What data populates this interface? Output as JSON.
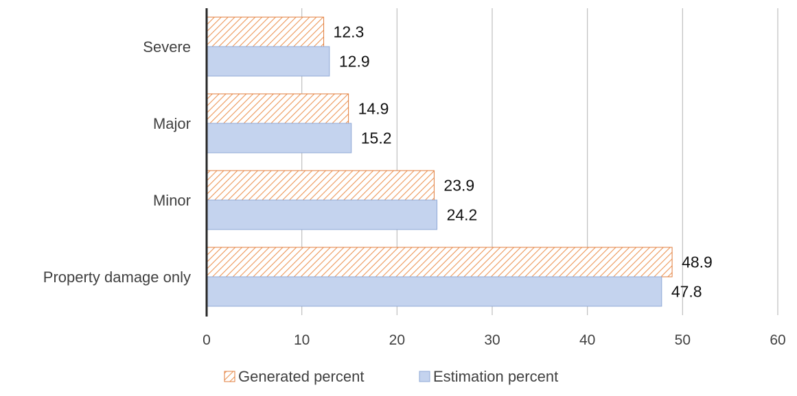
{
  "chart_data": {
    "type": "bar",
    "orientation": "horizontal",
    "categories": [
      "Severe",
      "Major",
      "Minor",
      "Property damage only"
    ],
    "series": [
      {
        "name": "Generated percent",
        "values": [
          12.3,
          14.9,
          23.9,
          48.9
        ],
        "fill": "hatch",
        "color": "#f2a46b",
        "edge_color": "#e07b39"
      },
      {
        "name": "Estimation percent",
        "values": [
          12.9,
          15.2,
          24.2,
          47.8
        ],
        "fill": "solid",
        "color": "#c4d3ee",
        "edge_color": "#8fa8d6"
      }
    ],
    "xlim": [
      0,
      60
    ],
    "xticks": [
      0,
      10,
      20,
      30,
      40,
      50,
      60
    ],
    "grid": "vertical",
    "legend_position": "bottom",
    "data_labels": true,
    "title": "",
    "xlabel": "",
    "ylabel": ""
  }
}
